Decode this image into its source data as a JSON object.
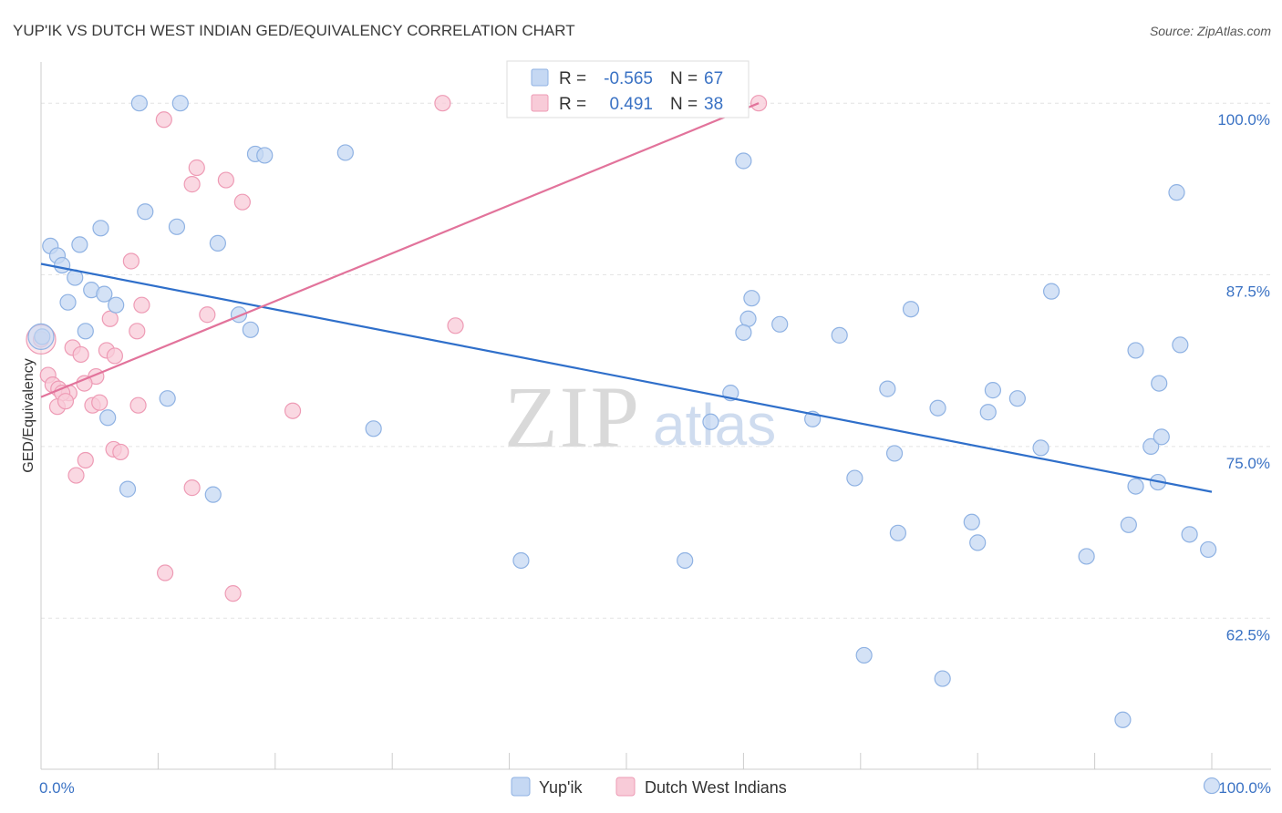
{
  "chart_data": {
    "type": "scatter",
    "title": "YUP'IK VS DUTCH WEST INDIAN GED/EQUIVALENCY CORRELATION CHART",
    "source": "Source: ZipAtlas.com",
    "ylabel": "GED/Equivalency",
    "xlabel": "",
    "xlim": [
      0,
      100
    ],
    "ylim": [
      51.5,
      103
    ],
    "y_ticks": [
      100.0,
      87.5,
      75.0,
      62.5
    ],
    "y_tick_labels": [
      "100.0%",
      "87.5%",
      "75.0%",
      "62.5%"
    ],
    "x_tick_labels": [
      "0.0%",
      "100.0%"
    ],
    "watermark": {
      "zip": "ZIP",
      "atlas": "atlas"
    },
    "legend": {
      "rows": [
        {
          "r_label": "R =",
          "r_value": "-0.565",
          "n_label": "N =",
          "n_value": "67"
        },
        {
          "r_label": "R =",
          "r_value": "0.491",
          "n_label": "N =",
          "n_value": "38"
        }
      ]
    },
    "colors": {
      "yupik_fill": "#c5d8f3",
      "yupik_stroke": "#8fb2e3",
      "yupik_line": "#2f6fca",
      "dutch_fill": "#f8cbd8",
      "dutch_stroke": "#ee9bb5",
      "dutch_line": "#e2739b",
      "tick_text": "#3a72c4"
    },
    "series": [
      {
        "name": "Yup'ik",
        "trend": {
          "x0": 0,
          "y0": 88.3,
          "x1": 100,
          "y1": 71.7
        },
        "points": [
          [
            8.4,
            100.0
          ],
          [
            11.9,
            100.0
          ],
          [
            18.3,
            96.3
          ],
          [
            19.1,
            96.2
          ],
          [
            26.0,
            96.4
          ],
          [
            60.0,
            95.8
          ],
          [
            97.0,
            93.5
          ],
          [
            8.9,
            92.1
          ],
          [
            5.1,
            90.9
          ],
          [
            11.6,
            91.0
          ],
          [
            15.1,
            89.8
          ],
          [
            0.8,
            89.6
          ],
          [
            3.3,
            89.7
          ],
          [
            1.4,
            88.9
          ],
          [
            1.8,
            88.2
          ],
          [
            2.9,
            87.3
          ],
          [
            4.3,
            86.4
          ],
          [
            5.4,
            86.1
          ],
          [
            2.3,
            85.5
          ],
          [
            6.4,
            85.3
          ],
          [
            16.9,
            84.6
          ],
          [
            3.8,
            83.4
          ],
          [
            17.9,
            83.5
          ],
          [
            0.1,
            83.0
          ],
          [
            60.7,
            85.8
          ],
          [
            60.4,
            84.3
          ],
          [
            60.0,
            83.3
          ],
          [
            63.1,
            83.9
          ],
          [
            68.2,
            83.1
          ],
          [
            74.3,
            85.0
          ],
          [
            86.3,
            86.3
          ],
          [
            93.5,
            82.0
          ],
          [
            97.3,
            82.4
          ],
          [
            10.8,
            78.5
          ],
          [
            5.7,
            77.1
          ],
          [
            28.4,
            76.3
          ],
          [
            58.9,
            78.9
          ],
          [
            65.9,
            77.0
          ],
          [
            57.2,
            76.8
          ],
          [
            72.3,
            79.2
          ],
          [
            76.6,
            77.8
          ],
          [
            81.3,
            79.1
          ],
          [
            80.9,
            77.5
          ],
          [
            83.4,
            78.5
          ],
          [
            95.5,
            79.6
          ],
          [
            72.9,
            74.5
          ],
          [
            85.4,
            74.9
          ],
          [
            94.8,
            75.0
          ],
          [
            95.7,
            75.7
          ],
          [
            69.5,
            72.7
          ],
          [
            93.5,
            72.1
          ],
          [
            95.4,
            72.4
          ],
          [
            7.4,
            71.9
          ],
          [
            14.7,
            71.5
          ],
          [
            73.2,
            68.7
          ],
          [
            79.5,
            69.5
          ],
          [
            80.0,
            68.0
          ],
          [
            89.3,
            67.0
          ],
          [
            92.9,
            69.3
          ],
          [
            98.1,
            68.6
          ],
          [
            99.7,
            67.5
          ],
          [
            41.0,
            66.7
          ],
          [
            55.0,
            66.7
          ],
          [
            70.3,
            59.8
          ],
          [
            77.0,
            58.1
          ],
          [
            92.4,
            55.1
          ],
          [
            100.0,
            50.3
          ]
        ]
      },
      {
        "name": "Dutch West Indians",
        "trend": {
          "x0": 0,
          "y0": 78.6,
          "x1": 61.3,
          "y1": 100.0
        },
        "points": [
          [
            34.3,
            100.0
          ],
          [
            61.3,
            100.0
          ],
          [
            10.5,
            98.8
          ],
          [
            13.3,
            95.3
          ],
          [
            12.9,
            94.1
          ],
          [
            15.8,
            94.4
          ],
          [
            17.2,
            92.8
          ],
          [
            7.7,
            88.5
          ],
          [
            8.6,
            85.3
          ],
          [
            14.2,
            84.6
          ],
          [
            5.9,
            84.3
          ],
          [
            35.4,
            83.8
          ],
          [
            8.2,
            83.4
          ],
          [
            0.0,
            82.8
          ],
          [
            2.7,
            82.2
          ],
          [
            5.6,
            82.0
          ],
          [
            3.4,
            81.7
          ],
          [
            6.3,
            81.6
          ],
          [
            0.6,
            80.2
          ],
          [
            4.7,
            80.1
          ],
          [
            1.0,
            79.5
          ],
          [
            3.7,
            79.6
          ],
          [
            1.5,
            79.2
          ],
          [
            2.4,
            78.9
          ],
          [
            1.8,
            78.9
          ],
          [
            1.4,
            77.9
          ],
          [
            2.1,
            78.3
          ],
          [
            4.4,
            78.0
          ],
          [
            5.0,
            78.2
          ],
          [
            8.3,
            78.0
          ],
          [
            21.5,
            77.6
          ],
          [
            6.2,
            74.8
          ],
          [
            6.8,
            74.6
          ],
          [
            3.8,
            74.0
          ],
          [
            3.0,
            72.9
          ],
          [
            12.9,
            72.0
          ],
          [
            10.6,
            65.8
          ],
          [
            16.4,
            64.3
          ]
        ]
      }
    ],
    "bottom_legend": [
      "Yup'ik",
      "Dutch West Indians"
    ]
  }
}
